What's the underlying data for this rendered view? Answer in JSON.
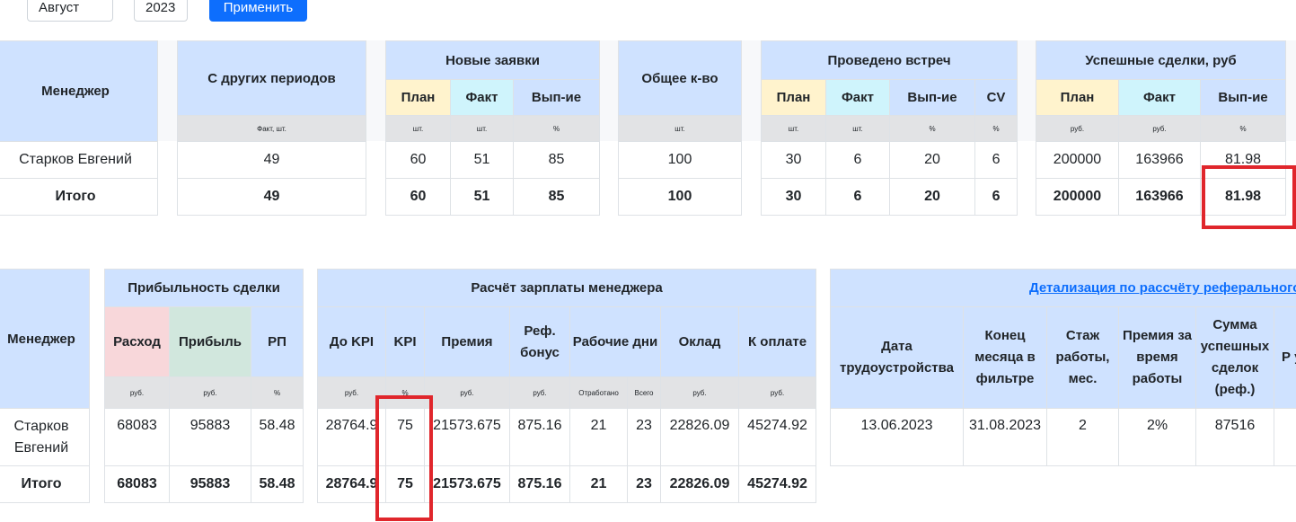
{
  "filters": {
    "month": "Август",
    "year": "2023",
    "apply_label": "Применить"
  },
  "top": {
    "manager": {
      "header": "Менеджер",
      "row_name": "Старков Евгений",
      "total_label": "Итого"
    },
    "prev": {
      "header": "С других периодов",
      "unit": "Факт, шт.",
      "value": "49",
      "total": "49"
    },
    "new_requests": {
      "header": "Новые заявки",
      "cols": [
        {
          "label": "План",
          "unit": "шт.",
          "value": "60",
          "total": "60"
        },
        {
          "label": "Факт",
          "unit": "шт.",
          "value": "51",
          "total": "51"
        },
        {
          "label": "Вып-ие",
          "unit": "%",
          "value": "85",
          "total": "85"
        }
      ]
    },
    "total_count": {
      "header": "Общее к-во",
      "unit": "шт.",
      "value": "100",
      "total": "100"
    },
    "meetings": {
      "header": "Проведено встреч",
      "cols": [
        {
          "label": "План",
          "unit": "шт.",
          "value": "30",
          "total": "30"
        },
        {
          "label": "Факт",
          "unit": "шт.",
          "value": "6",
          "total": "6"
        },
        {
          "label": "Вып-ие",
          "unit": "%",
          "value": "20",
          "total": "20"
        },
        {
          "label": "CV",
          "unit": "%",
          "value": "6",
          "total": "6"
        }
      ]
    },
    "deals": {
      "header": "Успешные сделки, руб",
      "cols": [
        {
          "label": "План",
          "unit": "руб.",
          "value": "200000",
          "total": "200000"
        },
        {
          "label": "Факт",
          "unit": "руб.",
          "value": "163966",
          "total": "163966"
        },
        {
          "label": "Вып-ие",
          "unit": "%",
          "value": "81.98",
          "total": "81.98"
        }
      ]
    }
  },
  "bottom": {
    "manager": {
      "header": "Менеджер",
      "row_name": "Старков Евгений",
      "total_label": "Итого"
    },
    "profit": {
      "header": "Прибыльность сделки",
      "cols": [
        {
          "label": "Расход",
          "unit": "руб.",
          "value": "68083",
          "total": "68083"
        },
        {
          "label": "Прибыль",
          "unit": "руб.",
          "value": "95883",
          "total": "95883"
        },
        {
          "label": "РП",
          "unit": "%",
          "value": "58.48",
          "total": "58.48"
        }
      ]
    },
    "salary": {
      "header": "Расчёт зарплаты менеджера",
      "before_kpi": {
        "label": "До KPI",
        "unit": "руб.",
        "value": "28764.9",
        "total": "28764.9"
      },
      "kpi": {
        "label": "KPI",
        "unit": "%",
        "value": "75",
        "total": "75"
      },
      "bonus": {
        "label": "Премия",
        "unit": "руб.",
        "value": "21573.675",
        "total": "21573.675"
      },
      "ref_bonus": {
        "label": "Реф. бонус",
        "unit": "руб.",
        "value": "875.16",
        "total": "875.16"
      },
      "workdays": {
        "label": "Рабочие дни",
        "worked": {
          "unit": "Отработано",
          "value": "21",
          "total": "21"
        },
        "all": {
          "unit": "Всего",
          "value": "23",
          "total": "23"
        }
      },
      "salary": {
        "label": "Оклад",
        "unit": "руб.",
        "value": "22826.09",
        "total": "22826.09"
      },
      "to_pay": {
        "label": "К оплате",
        "unit": "руб.",
        "value": "45274.92",
        "total": "45274.92"
      }
    },
    "referral": {
      "link": "Детализация по рассчёту реферального",
      "cols": [
        {
          "label": "Дата трудоустройства",
          "value": "13.06.2023"
        },
        {
          "label": "Конец месяца в фильтре",
          "value": "31.08.2023"
        },
        {
          "label": "Стаж работы, мес.",
          "value": "2"
        },
        {
          "label": "Премия за время работы",
          "value": "2%"
        },
        {
          "label": "Сумма успешных сделок (реф.)",
          "value": "87516"
        },
        {
          "label": "Р ус с",
          "value": ""
        }
      ]
    }
  }
}
